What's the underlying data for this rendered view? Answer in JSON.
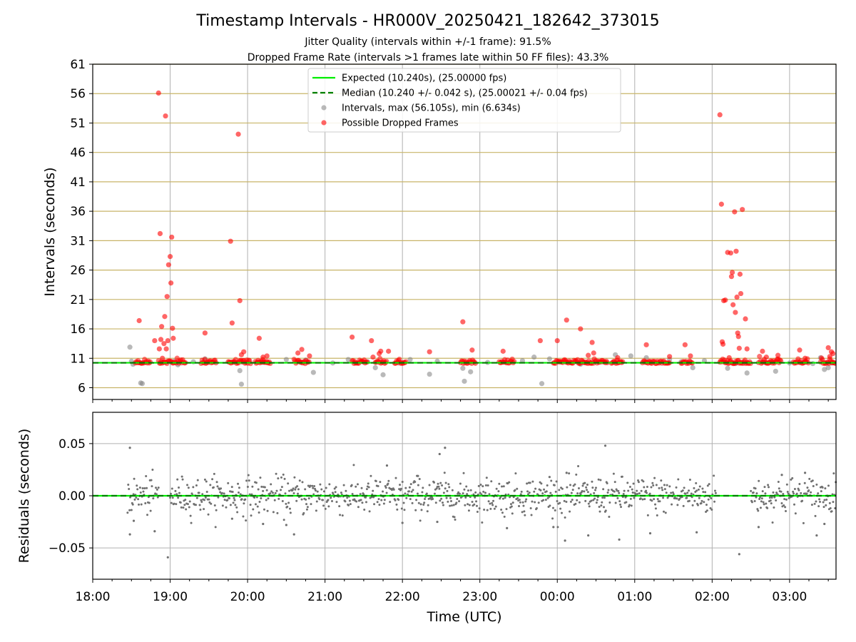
{
  "colors": {
    "expected": "#00ee00",
    "median": "#007f00",
    "intervals": "#808080",
    "dropped": "#ff0000",
    "threshold_lines": "#c8b468",
    "grid": "#b0b0b0",
    "residuals": "#707070"
  },
  "chart_data": [
    {
      "type": "scatter",
      "title": "Timestamp Intervals - HR000V_20250421_182642_373015",
      "subtitle_1": "Jitter Quality (intervals within +/-1 frame): 91.5%",
      "subtitle_2": "Dropped Frame Rate (intervals >1 frames late within 50 FF files): 43.3%",
      "xlabel": "",
      "ylabel": "Intervals (seconds)",
      "x_unit": "hours since 18:00 UTC",
      "xlim": [
        0,
        9.6
      ],
      "ylim": [
        4,
        61
      ],
      "x_ticks": [
        "18:00",
        "19:00",
        "20:00",
        "21:00",
        "22:00",
        "23:00",
        "00:00",
        "01:00",
        "02:00",
        "03:00"
      ],
      "y_ticks": [
        6,
        11,
        16,
        21,
        26,
        31,
        36,
        41,
        46,
        51,
        56,
        61
      ],
      "grid": true,
      "legend_position": "top-center",
      "reference_lines": [
        {
          "name": "Expected (10.240s), (25.00000 fps)",
          "y": 10.24,
          "style": "solid"
        },
        {
          "name": "Median (10.240 +/- 0.042 s), (25.00021 +/- 0.04 fps)",
          "y": 10.24,
          "style": "dashed"
        }
      ],
      "series": [
        {
          "name": "Intervals, max (56.105s), min (6.634s)",
          "points": [
            [
              0.48,
              12.9
            ],
            [
              0.5,
              10.5
            ],
            [
              0.52,
              10.0
            ],
            [
              0.62,
              6.8
            ],
            [
              0.64,
              6.7
            ],
            [
              1.05,
              10.5
            ],
            [
              1.1,
              9.9
            ],
            [
              1.3,
              10.4
            ],
            [
              1.45,
              10.9
            ],
            [
              1.9,
              8.9
            ],
            [
              1.92,
              6.6
            ],
            [
              2.2,
              10.3
            ],
            [
              2.5,
              10.8
            ],
            [
              2.75,
              10.7
            ],
            [
              2.85,
              8.6
            ],
            [
              3.1,
              10.2
            ],
            [
              3.3,
              10.8
            ],
            [
              3.55,
              10.4
            ],
            [
              3.65,
              9.4
            ],
            [
              3.75,
              8.2
            ],
            [
              3.95,
              10.2
            ],
            [
              4.1,
              10.8
            ],
            [
              4.35,
              8.3
            ],
            [
              4.45,
              10.5
            ],
            [
              4.78,
              9.3
            ],
            [
              4.8,
              7.1
            ],
            [
              4.88,
              8.7
            ],
            [
              5.1,
              10.3
            ],
            [
              5.55,
              10.6
            ],
            [
              5.7,
              11.2
            ],
            [
              5.8,
              6.7
            ],
            [
              5.9,
              10.9
            ],
            [
              6.1,
              10.4
            ],
            [
              6.3,
              10.0
            ],
            [
              6.75,
              11.6
            ],
            [
              6.95,
              11.4
            ],
            [
              7.15,
              11.1
            ],
            [
              7.2,
              10.3
            ],
            [
              7.45,
              10.8
            ],
            [
              7.6,
              10.4
            ],
            [
              7.75,
              9.4
            ],
            [
              7.9,
              10.6
            ],
            [
              8.2,
              9.3
            ],
            [
              8.3,
              10.1
            ],
            [
              8.45,
              8.5
            ],
            [
              8.7,
              10.2
            ],
            [
              8.82,
              8.8
            ],
            [
              9.0,
              10.2
            ],
            [
              9.2,
              10.5
            ],
            [
              9.3,
              10.1
            ],
            [
              9.4,
              11.1
            ],
            [
              9.45,
              9.1
            ],
            [
              9.5,
              9.4
            ],
            [
              9.55,
              10.2
            ]
          ]
        },
        {
          "name": "Possible Dropped Frames",
          "points": [
            [
              0.6,
              17.4
            ],
            [
              0.8,
              14.0
            ],
            [
              0.85,
              56.1
            ],
            [
              0.86,
              12.6
            ],
            [
              0.87,
              32.2
            ],
            [
              0.88,
              14.2
            ],
            [
              0.89,
              16.4
            ],
            [
              0.9,
              11.0
            ],
            [
              0.92,
              13.5
            ],
            [
              0.93,
              18.1
            ],
            [
              0.94,
              52.2
            ],
            [
              0.95,
              12.6
            ],
            [
              0.96,
              21.5
            ],
            [
              0.97,
              14.0
            ],
            [
              0.98,
              26.9
            ],
            [
              1.0,
              28.3
            ],
            [
              1.01,
              23.8
            ],
            [
              1.02,
              31.6
            ],
            [
              1.03,
              16.1
            ],
            [
              1.04,
              14.4
            ],
            [
              1.45,
              15.3
            ],
            [
              1.78,
              30.9
            ],
            [
              1.8,
              17.0
            ],
            [
              1.88,
              49.1
            ],
            [
              1.9,
              20.8
            ],
            [
              1.92,
              11.6
            ],
            [
              1.95,
              12.1
            ],
            [
              2.15,
              14.4
            ],
            [
              2.2,
              11.2
            ],
            [
              2.25,
              11.4
            ],
            [
              2.65,
              11.9
            ],
            [
              2.7,
              12.5
            ],
            [
              2.8,
              11.4
            ],
            [
              3.35,
              14.6
            ],
            [
              3.6,
              14.0
            ],
            [
              3.62,
              11.2
            ],
            [
              3.7,
              11.8
            ],
            [
              3.72,
              12.2
            ],
            [
              3.82,
              12.2
            ],
            [
              4.35,
              12.1
            ],
            [
              4.78,
              17.2
            ],
            [
              4.9,
              12.4
            ],
            [
              5.3,
              12.2
            ],
            [
              5.78,
              14.0
            ],
            [
              6.0,
              14.0
            ],
            [
              6.12,
              17.5
            ],
            [
              6.3,
              16.0
            ],
            [
              6.4,
              11.5
            ],
            [
              6.45,
              13.7
            ],
            [
              6.47,
              11.9
            ],
            [
              6.78,
              11.1
            ],
            [
              7.15,
              13.3
            ],
            [
              7.45,
              11.3
            ],
            [
              7.65,
              13.3
            ],
            [
              7.72,
              11.4
            ],
            [
              8.1,
              52.4
            ],
            [
              8.12,
              37.2
            ],
            [
              8.13,
              13.8
            ],
            [
              8.14,
              13.4
            ],
            [
              8.15,
              20.8
            ],
            [
              8.17,
              20.9
            ],
            [
              8.2,
              29.0
            ],
            [
              8.22,
              11.1
            ],
            [
              8.24,
              28.9
            ],
            [
              8.25,
              24.9
            ],
            [
              8.26,
              25.6
            ],
            [
              8.27,
              20.1
            ],
            [
              8.29,
              35.9
            ],
            [
              8.3,
              18.8
            ],
            [
              8.31,
              29.2
            ],
            [
              8.32,
              21.4
            ],
            [
              8.33,
              15.3
            ],
            [
              8.34,
              14.7
            ],
            [
              8.35,
              12.7
            ],
            [
              8.36,
              25.3
            ],
            [
              8.37,
              22.0
            ],
            [
              8.39,
              36.3
            ],
            [
              8.43,
              17.7
            ],
            [
              8.45,
              12.6
            ],
            [
              8.65,
              12.2
            ],
            [
              8.7,
              11.2
            ],
            [
              8.85,
              11.5
            ],
            [
              9.13,
              12.4
            ],
            [
              9.2,
              11.0
            ],
            [
              9.5,
              12.8
            ],
            [
              9.52,
              11.3
            ],
            [
              9.54,
              12.1
            ],
            [
              9.56,
              11.8
            ]
          ],
          "dense_clusters_hours": [
            [
              0.55,
              0.75
            ],
            [
              0.85,
              1.2
            ],
            [
              1.4,
              1.6
            ],
            [
              1.75,
              2.05
            ],
            [
              2.1,
              2.3
            ],
            [
              2.6,
              2.8
            ],
            [
              3.35,
              3.55
            ],
            [
              3.65,
              3.8
            ],
            [
              3.9,
              4.05
            ],
            [
              4.75,
              4.95
            ],
            [
              5.25,
              5.45
            ],
            [
              5.95,
              6.65
            ],
            [
              6.7,
              6.85
            ],
            [
              7.1,
              7.45
            ],
            [
              7.6,
              7.75
            ],
            [
              8.1,
              8.5
            ],
            [
              8.6,
              8.9
            ],
            [
              9.05,
              9.25
            ],
            [
              9.4,
              9.6
            ]
          ]
        }
      ]
    },
    {
      "type": "scatter",
      "title": "",
      "xlabel": "Time (UTC)",
      "ylabel": "Residuals (seconds)",
      "x_unit": "hours since 18:00 UTC",
      "xlim": [
        0,
        9.6
      ],
      "ylim": [
        -0.08,
        0.08
      ],
      "x_ticks": [
        "18:00",
        "19:00",
        "20:00",
        "21:00",
        "22:00",
        "23:00",
        "00:00",
        "01:00",
        "02:00",
        "03:00"
      ],
      "y_ticks": [
        "−0.05",
        "0.00",
        "0.05"
      ],
      "y_tick_values": [
        -0.05,
        0.0,
        0.05
      ],
      "grid": true,
      "reference_lines": [
        {
          "name": "Expected",
          "y": 0.0,
          "style": "solid"
        },
        {
          "name": "Median",
          "y": 0.0,
          "style": "dashed"
        }
      ],
      "series": [
        {
          "name": "",
          "segments_hours": [
            [
              0.45,
              0.85
            ],
            [
              1.0,
              8.05
            ],
            [
              8.5,
              9.6
            ]
          ],
          "typical_spread": 0.009,
          "outliers": [
            [
              0.48,
              0.046
            ],
            [
              0.48,
              -0.037
            ],
            [
              0.53,
              -0.024
            ],
            [
              0.8,
              -0.034
            ],
            [
              0.97,
              -0.059
            ],
            [
              1.8,
              -0.022
            ],
            [
              2.2,
              -0.027
            ],
            [
              2.5,
              -0.028
            ],
            [
              2.6,
              -0.037
            ],
            [
              3.8,
              0.029
            ],
            [
              4.0,
              -0.026
            ],
            [
              4.2,
              0.019
            ],
            [
              4.45,
              -0.025
            ],
            [
              4.48,
              0.04
            ],
            [
              4.55,
              0.046
            ],
            [
              5.35,
              -0.031
            ],
            [
              5.9,
              0.018
            ],
            [
              5.95,
              -0.03
            ],
            [
              6.1,
              -0.043
            ],
            [
              6.12,
              0.022
            ],
            [
              6.4,
              -0.038
            ],
            [
              6.62,
              0.048
            ],
            [
              6.8,
              -0.042
            ],
            [
              7.2,
              -0.036
            ],
            [
              7.8,
              -0.035
            ],
            [
              8.35,
              -0.056
            ],
            [
              8.6,
              -0.03
            ],
            [
              8.9,
              0.02
            ],
            [
              9.2,
              0.022
            ],
            [
              9.35,
              -0.038
            ],
            [
              9.45,
              -0.027
            ]
          ]
        }
      ]
    }
  ],
  "legend": [
    {
      "label": "Expected (10.240s), (25.00000 fps)",
      "kind": "solid-line"
    },
    {
      "label": "Median (10.240 +/- 0.042 s), (25.00021 +/- 0.04 fps)",
      "kind": "dashed-line"
    },
    {
      "label": "Intervals, max (56.105s), min (6.634s)",
      "kind": "gray-dot"
    },
    {
      "label": "Possible Dropped Frames",
      "kind": "red-dot"
    }
  ]
}
